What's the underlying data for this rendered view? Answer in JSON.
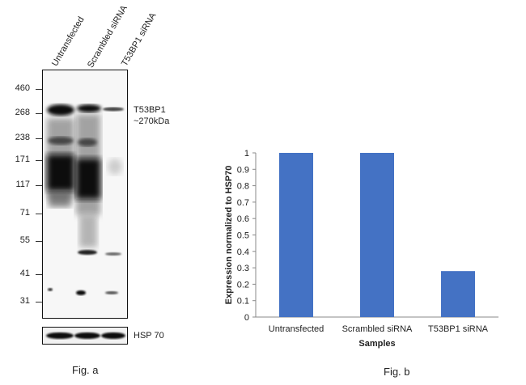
{
  "blot": {
    "lanes": [
      "Untransfected",
      "Scrambled siRNA",
      "T53BP1 siRNA"
    ],
    "markers": [
      "460",
      "268",
      "238",
      "171",
      "117",
      "71",
      "55",
      "41",
      "31"
    ],
    "target_label": "T53BP1",
    "target_size": "~270kDa",
    "loading_label": "HSP 70",
    "caption": "Fig. a"
  },
  "chart_caption": "Fig. b",
  "chart_data": {
    "type": "bar",
    "categories": [
      "Untransfected",
      "Scrambled siRNA",
      "T53BP1 siRNA"
    ],
    "values": [
      1.0,
      1.0,
      0.28
    ],
    "title": "",
    "xlabel": "Samples",
    "ylabel": "Expression normalized to HSP70",
    "ylim": [
      0,
      1
    ],
    "yticks": [
      "0",
      "0.1",
      "0.2",
      "0.3",
      "0.4",
      "0.5",
      "0.6",
      "0.7",
      "0.8",
      "0.9",
      "1"
    ],
    "bar_color": "#4472c4",
    "grid": false,
    "legend": "none"
  }
}
